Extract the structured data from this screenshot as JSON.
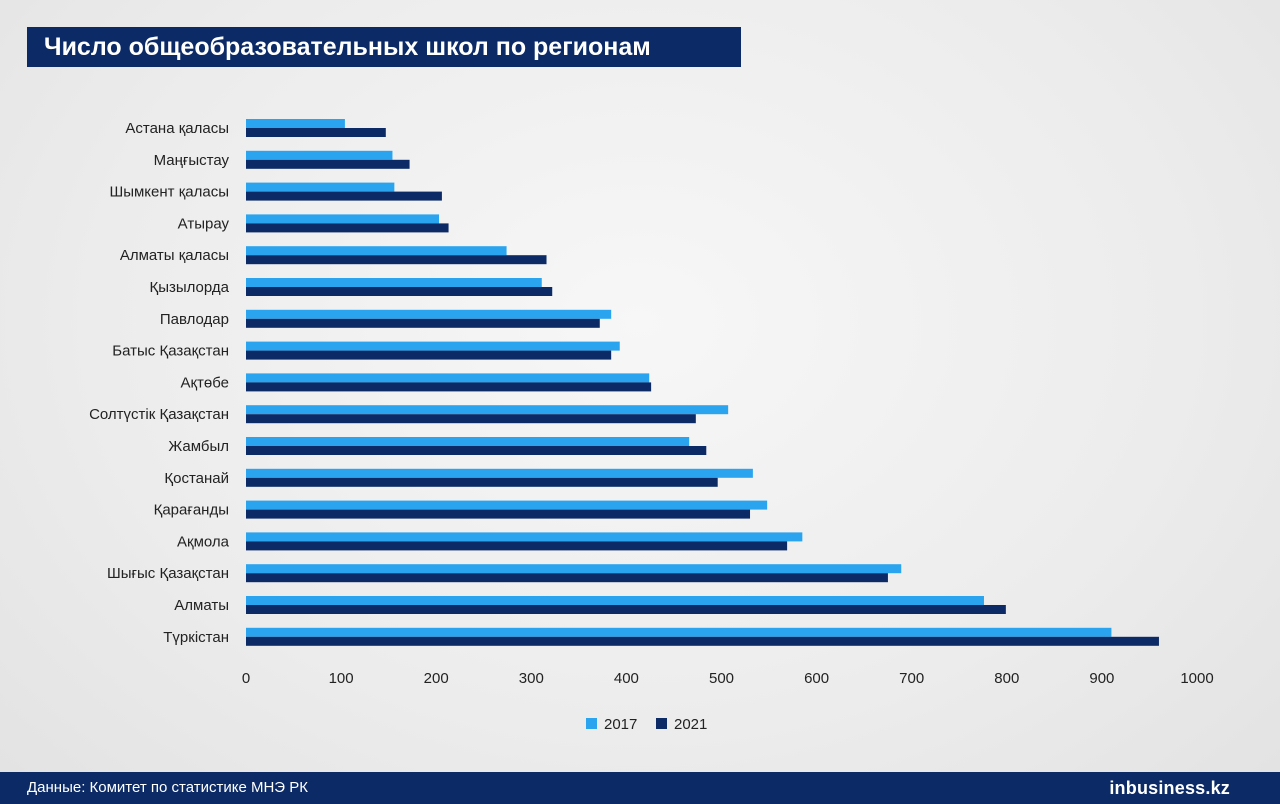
{
  "title": "Число общеобразовательных школ по регионам",
  "footer": {
    "source": "Данные: Комитет по статистике МНЭ РК",
    "logo": "inbusiness.kz"
  },
  "colors": {
    "series_2017": "#2aa4ee",
    "series_2021": "#0b2a66",
    "title_bg": "#0b2a66"
  },
  "chart_data": {
    "type": "bar",
    "orientation": "horizontal",
    "categories": [
      "Астана қаласы",
      "Маңғыстау",
      "Шымкент қаласы",
      "Атырау",
      "Алматы қаласы",
      "Қызылорда",
      "Павлодар",
      "Батыс Қазақстан",
      "Ақтөбе",
      "Солтүстік Қазақстан",
      "Жамбыл",
      "Қостанай",
      "Қарағанды",
      "Ақмола",
      "Шығыс Қазақстан",
      "Алматы",
      "Түркістан"
    ],
    "series": [
      {
        "name": "2017",
        "color": "#2aa4ee",
        "values": [
          104,
          154,
          156,
          203,
          274,
          311,
          384,
          393,
          424,
          507,
          466,
          533,
          548,
          585,
          689,
          776,
          910
        ]
      },
      {
        "name": "2021",
        "color": "#0b2a66",
        "values": [
          147,
          172,
          206,
          213,
          316,
          322,
          372,
          384,
          426,
          473,
          484,
          496,
          530,
          569,
          675,
          799,
          960
        ]
      }
    ],
    "xlim": [
      0,
      1000
    ],
    "xticks": [
      "0",
      "100",
      "200",
      "300",
      "400",
      "500",
      "600",
      "700",
      "800",
      "900",
      "1000"
    ],
    "grid": false,
    "legend": "bottom-center"
  }
}
